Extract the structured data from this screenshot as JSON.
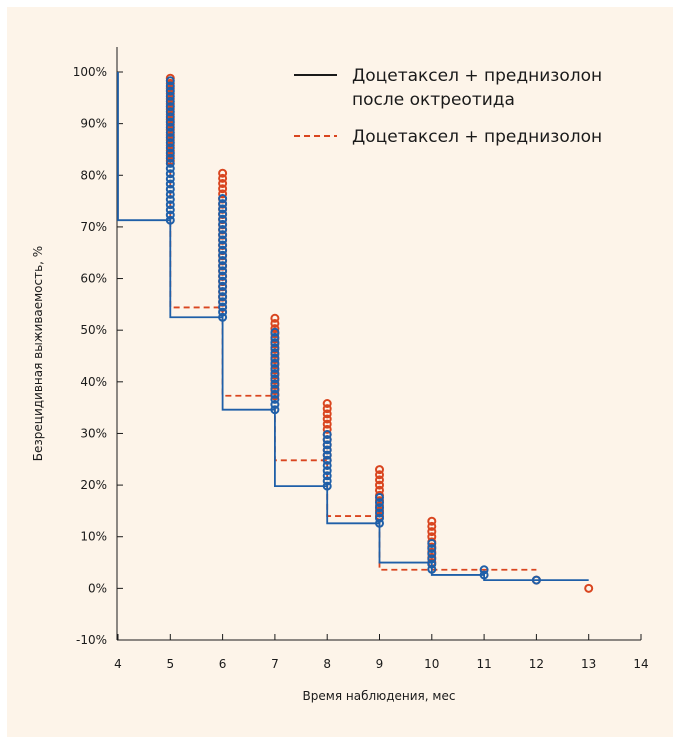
{
  "chart_data": {
    "type": "line",
    "xlabel": "Время наблюдения, мес",
    "ylabel": "Безрецидивная выживаемость, %",
    "xlim": [
      4,
      14
    ],
    "ylim": [
      -10,
      100
    ],
    "x_ticks": [
      4,
      5,
      6,
      7,
      8,
      9,
      10,
      11,
      12,
      13,
      14
    ],
    "y_ticks": [
      -10,
      0,
      10,
      20,
      30,
      40,
      50,
      60,
      70,
      80,
      90,
      100
    ],
    "y_tick_labels": [
      "-10%",
      "0%",
      "10%",
      "20%",
      "30%",
      "40%",
      "50%",
      "60%",
      "70%",
      "80%",
      "90%",
      "100%"
    ],
    "grid": false,
    "legend_position": "top-right",
    "colors": {
      "series_1": "#1f5fa8",
      "series_2": "#d9451f",
      "legend_series_1": "#1a1a1a",
      "legend_series_2": "#d9451f",
      "panel": "#fdf4e9",
      "axes": "#1a1a1a"
    },
    "legend": [
      {
        "lines": [
          "Доцетаксел + преднизолон",
          "после октреотида"
        ],
        "style": "solid"
      },
      {
        "lines": [
          "Доцетаксел + преднизолон"
        ],
        "style": "dashed"
      }
    ],
    "series": [
      {
        "name": "Доцетаксел + преднизолон после октреотида",
        "style": "solid",
        "steps": [
          [
            4,
            100
          ],
          [
            5,
            71.3
          ],
          [
            6,
            52.5
          ],
          [
            7,
            34.6
          ],
          [
            8,
            19.8
          ],
          [
            9,
            12.6
          ],
          [
            10,
            5.0
          ],
          [
            11,
            2.6
          ],
          [
            12,
            1.6
          ],
          [
            13,
            1.6
          ]
        ],
        "censored": [
          {
            "x": 5,
            "from": 71.3,
            "to": 98.5,
            "step": 1.0
          },
          {
            "x": 6,
            "from": 52.5,
            "to": 75.0,
            "step": 1.0
          },
          {
            "x": 7,
            "from": 34.6,
            "to": 50.0,
            "step": 1.0
          },
          {
            "x": 8,
            "from": 19.8,
            "to": 30.0,
            "step": 1.0
          },
          {
            "x": 9,
            "from": 12.6,
            "to": 18.0,
            "step": 1.0
          },
          {
            "x": 10,
            "from": 3.7,
            "to": 9.0,
            "step": 1.0
          },
          {
            "x": 11,
            "from": 2.6,
            "to": 3.6,
            "step": 1.0
          },
          {
            "x": 12,
            "from": 1.6,
            "to": 1.6,
            "step": 1.0
          }
        ]
      },
      {
        "name": "Доцетаксел + преднизолон",
        "style": "dashed",
        "steps": [
          [
            5,
            82.8
          ],
          [
            6,
            54.4
          ],
          [
            7,
            37.3
          ],
          [
            8,
            24.8
          ],
          [
            9,
            14.0
          ],
          [
            10,
            3.6
          ],
          [
            11,
            3.6
          ],
          [
            12,
            3.6
          ]
        ],
        "censored": [
          {
            "x": 5,
            "from": 82.8,
            "to": 98.5,
            "step": 1.0
          },
          {
            "x": 6,
            "from": 54.4,
            "to": 80.8,
            "step": 1.0
          },
          {
            "x": 7,
            "from": 37.3,
            "to": 52.5,
            "step": 1.0
          },
          {
            "x": 8,
            "from": 24.8,
            "to": 35.4,
            "step": 1.0
          },
          {
            "x": 9,
            "from": 14.0,
            "to": 23.2,
            "step": 1.0
          },
          {
            "x": 10,
            "from": 5.0,
            "to": 12.5,
            "step": 1.0
          },
          {
            "x": 12,
            "from": 1.6,
            "to": 1.6,
            "step": 1.0
          },
          {
            "x": 13,
            "from": 0.0,
            "to": 0.0,
            "step": 1.0
          }
        ]
      }
    ]
  }
}
